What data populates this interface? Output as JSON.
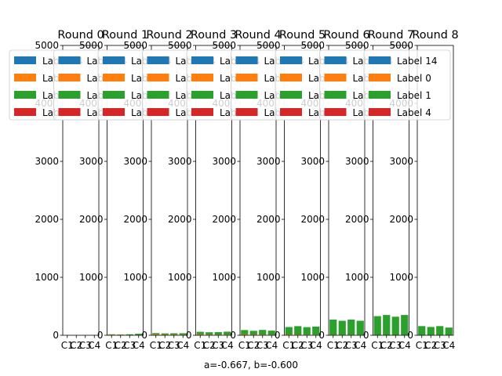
{
  "figure": {
    "caption": "a=-0.667, b=-0.600"
  },
  "chart_data": {
    "type": "bar",
    "layout": "small multiples, stacked bars per panel",
    "ylim": [
      0,
      5000
    ],
    "yticks": [
      "0",
      "1000",
      "2000",
      "3000",
      "4000",
      "5000"
    ],
    "categories": [
      "C1",
      "C2",
      "C3",
      "C4"
    ],
    "legend_placement": "top-left of each panel",
    "series_meta": [
      {
        "name": "Label 14",
        "color": "#1f77b4"
      },
      {
        "name": "Label 0",
        "color": "#ff7f0e"
      },
      {
        "name": "Label 1",
        "color": "#2ca02c"
      },
      {
        "name": "Label 4",
        "color": "#d62728"
      }
    ],
    "panels": [
      {
        "title": "Round 0",
        "series": [
          {
            "name": "Label 14",
            "values": [
              0,
              0,
              0,
              0
            ]
          },
          {
            "name": "Label 0",
            "values": [
              0,
              0,
              0,
              0
            ]
          },
          {
            "name": "Label 1",
            "values": [
              0,
              0,
              0,
              0
            ]
          },
          {
            "name": "Label 4",
            "values": [
              0,
              0,
              0,
              0
            ]
          }
        ]
      },
      {
        "title": "Round 1",
        "series": [
          {
            "name": "Label 14",
            "values": [
              0,
              0,
              0,
              0
            ]
          },
          {
            "name": "Label 0",
            "values": [
              12,
              10,
              5,
              6
            ]
          },
          {
            "name": "Label 1",
            "values": [
              5,
              4,
              12,
              20
            ]
          },
          {
            "name": "Label 4",
            "values": [
              0,
              0,
              0,
              0
            ]
          }
        ]
      },
      {
        "title": "Round 2",
        "series": [
          {
            "name": "Label 14",
            "values": [
              0,
              0,
              0,
              0
            ]
          },
          {
            "name": "Label 0",
            "values": [
              18,
              14,
              12,
              10
            ]
          },
          {
            "name": "Label 1",
            "values": [
              20,
              18,
              22,
              25
            ]
          },
          {
            "name": "Label 4",
            "values": [
              0,
              0,
              0,
              0
            ]
          }
        ]
      },
      {
        "title": "Round 3",
        "series": [
          {
            "name": "Label 14",
            "values": [
              0,
              0,
              0,
              0
            ]
          },
          {
            "name": "Label 0",
            "values": [
              15,
              12,
              10,
              12
            ]
          },
          {
            "name": "Label 1",
            "values": [
              45,
              40,
              45,
              50
            ]
          },
          {
            "name": "Label 4",
            "values": [
              0,
              0,
              0,
              0
            ]
          }
        ]
      },
      {
        "title": "Round 4",
        "series": [
          {
            "name": "Label 14",
            "values": [
              0,
              0,
              0,
              0
            ]
          },
          {
            "name": "Label 0",
            "values": [
              15,
              12,
              12,
              10
            ]
          },
          {
            "name": "Label 1",
            "values": [
              75,
              65,
              80,
              70
            ]
          },
          {
            "name": "Label 4",
            "values": [
              0,
              0,
              0,
              0
            ]
          }
        ]
      },
      {
        "title": "Round 5",
        "series": [
          {
            "name": "Label 14",
            "values": [
              0,
              0,
              0,
              0
            ]
          },
          {
            "name": "Label 0",
            "values": [
              12,
              12,
              10,
              10
            ]
          },
          {
            "name": "Label 1",
            "values": [
              130,
              145,
              130,
              140
            ]
          },
          {
            "name": "Label 4",
            "values": [
              0,
              0,
              0,
              0
            ]
          }
        ]
      },
      {
        "title": "Round 6",
        "series": [
          {
            "name": "Label 14",
            "values": [
              0,
              0,
              0,
              0
            ]
          },
          {
            "name": "Label 0",
            "values": [
              8,
              8,
              8,
              8
            ]
          },
          {
            "name": "Label 1",
            "values": [
              262,
              242,
              262,
              242
            ]
          },
          {
            "name": "Label 4",
            "values": [
              0,
              0,
              0,
              0
            ]
          }
        ]
      },
      {
        "title": "Round 7",
        "series": [
          {
            "name": "Label 14",
            "values": [
              0,
              0,
              0,
              0
            ]
          },
          {
            "name": "Label 0",
            "values": [
              5,
              5,
              5,
              5
            ]
          },
          {
            "name": "Label 1",
            "values": [
              325,
              345,
              315,
              345
            ]
          },
          {
            "name": "Label 4",
            "values": [
              0,
              0,
              0,
              0
            ]
          }
        ]
      },
      {
        "title": "Round 8",
        "series": [
          {
            "name": "Label 14",
            "values": [
              0,
              0,
              0,
              0
            ]
          },
          {
            "name": "Label 0",
            "values": [
              3,
              3,
              3,
              3
            ]
          },
          {
            "name": "Label 1",
            "values": [
              155,
              140,
              155,
              130
            ]
          },
          {
            "name": "Label 4",
            "values": [
              0,
              0,
              0,
              0
            ]
          }
        ]
      }
    ]
  }
}
